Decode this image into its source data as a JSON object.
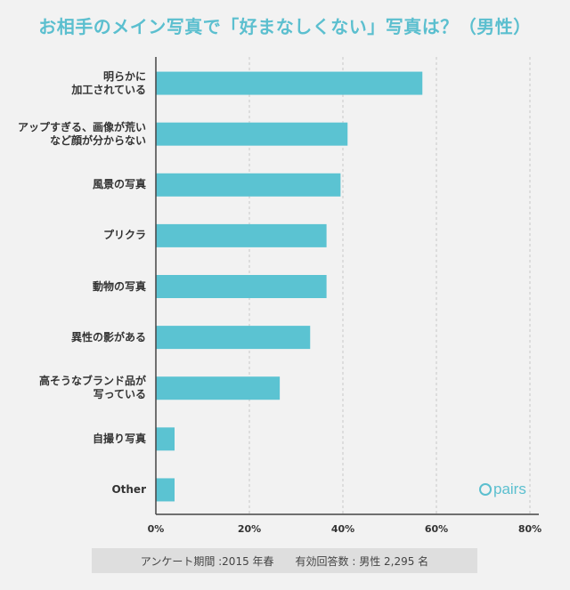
{
  "title": "お相手のメイン写真で「好まなしくない」写真は？（男性）",
  "footnote": "アンケート期間 :2015 年春　　有効回答数 : 男性 2,295 名",
  "logo": {
    "text": "pairs",
    "icon": "pairs-heart-icon"
  },
  "colors": {
    "bar": "#5bc3d2",
    "title": "#5bbfcf",
    "grid": "#c8c8c8",
    "axis": "#444444"
  },
  "chart_data": {
    "type": "bar",
    "orientation": "horizontal",
    "title": "お相手のメイン写真で「好まなしくない」写真は？（男性）",
    "categories": [
      "明らかに\n加工されている",
      "アップすぎる、画像が荒い\nなど顔が分からない",
      "風景の写真",
      "プリクラ",
      "動物の写真",
      "異性の影がある",
      "高そうなブランド品が\n写っている",
      "自撮り写真",
      "Other"
    ],
    "values": [
      57,
      41,
      39.5,
      36.5,
      36.5,
      33,
      26.5,
      4,
      4
    ],
    "unit": "%",
    "xlim": [
      0,
      80
    ],
    "x_ticks": [
      "0%",
      "20%",
      "40%",
      "60%",
      "80%"
    ],
    "grid": true
  }
}
